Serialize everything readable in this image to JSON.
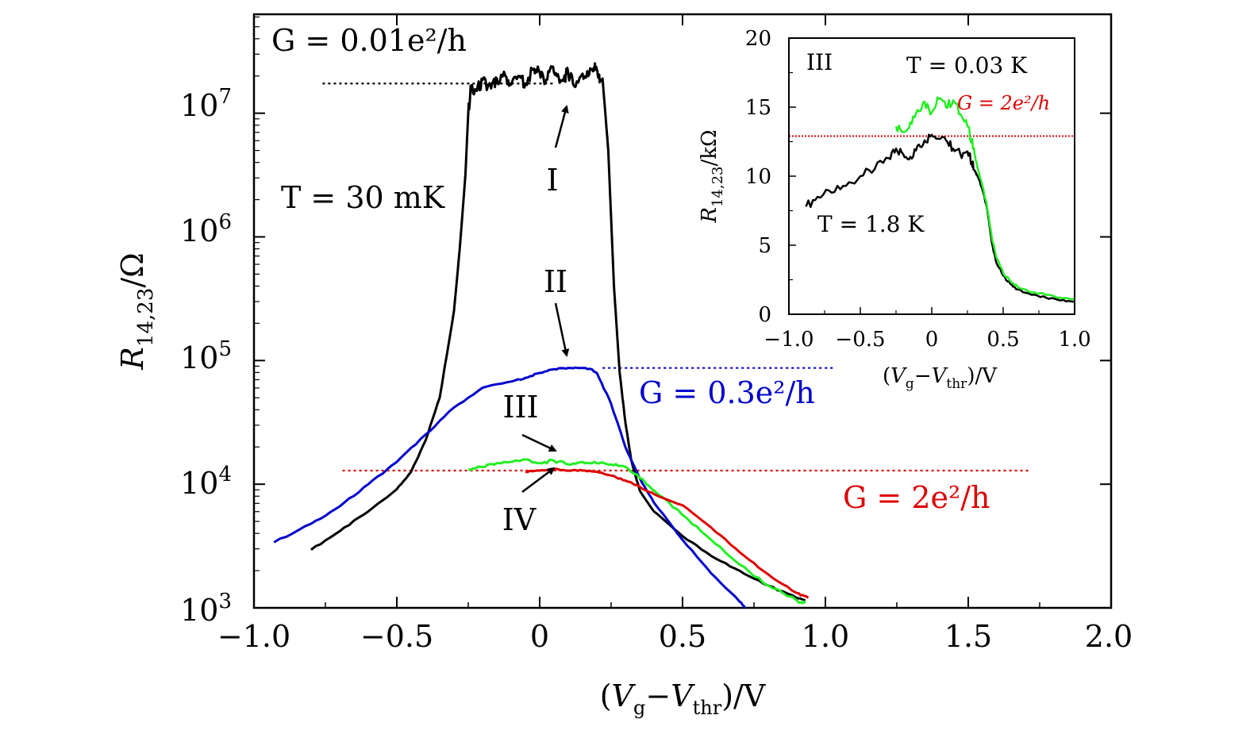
{
  "chart_data": [
    {
      "id": "main",
      "type": "line",
      "title": "",
      "xlabel": "(V_g−V_thr)/V",
      "xlabel_parts": {
        "open": "(",
        "v": "V",
        "g": "g",
        "minus": "−",
        "v2": "V",
        "thr": "thr",
        "close": ")/V"
      },
      "ylabel": "R_14,23/Ω",
      "ylabel_parts": {
        "r": "R",
        "sub": "14,23",
        "rest": "/Ω"
      },
      "xlim": [
        -1.0,
        2.0
      ],
      "ylim_log10": [
        3,
        7.8
      ],
      "yscale": "log",
      "xticks": [
        -1.0,
        -0.5,
        0,
        0.5,
        1.0,
        1.5,
        2.0
      ],
      "xtick_labels": [
        "−1.0",
        "−0.5",
        "0",
        "0.5",
        "1.0",
        "1.5",
        "2.0"
      ],
      "yticks": [
        3,
        4,
        5,
        6,
        7
      ],
      "ytick_labels": [
        "10",
        "10",
        "10",
        "10",
        "10"
      ],
      "ytick_exponents": [
        "3",
        "4",
        "5",
        "6",
        "7"
      ],
      "annotations": {
        "temperature": "T = 30 mK",
        "g001": "G = 0.01e²/h",
        "g03": "G = 0.3e²/h",
        "g2": "G = 2e²/h",
        "labels": [
          "I",
          "II",
          "III",
          "IV"
        ]
      },
      "hlines": [
        {
          "name": "G = 0.01e2/h",
          "color": "#000000",
          "log10_y": 7.24,
          "x_range": [
            -0.76,
            0.05
          ]
        },
        {
          "name": "G = 0.3e2/h",
          "color": "#0000cc",
          "log10_y": 4.94,
          "x_range": [
            0.22,
            1.03
          ]
        },
        {
          "name": "G = 2e2/h",
          "color": "#dd0000",
          "log10_y": 4.11,
          "x_range": [
            -0.69,
            1.72
          ]
        }
      ],
      "series": [
        {
          "name": "I",
          "color": "#000000",
          "x": [
            -0.8,
            -0.7,
            -0.6,
            -0.5,
            -0.45,
            -0.4,
            -0.35,
            -0.3,
            -0.28,
            -0.26,
            -0.25,
            -0.24,
            -0.22,
            -0.2,
            -0.17,
            -0.15,
            -0.12,
            -0.1,
            -0.07,
            -0.05,
            -0.02,
            0.0,
            0.02,
            0.04,
            0.06,
            0.08,
            0.1,
            0.12,
            0.15,
            0.17,
            0.19,
            0.2,
            0.21,
            0.22,
            0.24,
            0.26,
            0.28,
            0.3,
            0.32,
            0.35,
            0.4,
            0.5,
            0.6,
            0.7,
            0.8,
            0.9,
            0.93
          ],
          "log10_y": [
            3.47,
            3.62,
            3.78,
            3.96,
            4.1,
            4.35,
            4.7,
            5.4,
            5.9,
            6.5,
            7.0,
            7.22,
            7.18,
            7.27,
            7.2,
            7.28,
            7.3,
            7.23,
            7.3,
            7.24,
            7.36,
            7.33,
            7.25,
            7.38,
            7.3,
            7.27,
            7.33,
            7.22,
            7.32,
            7.3,
            7.37,
            7.35,
            7.25,
            7.28,
            6.7,
            5.6,
            4.9,
            4.5,
            4.2,
            3.95,
            3.78,
            3.58,
            3.42,
            3.3,
            3.18,
            3.08,
            3.06
          ]
        },
        {
          "name": "II",
          "color": "#0000cc",
          "x": [
            -0.93,
            -0.8,
            -0.7,
            -0.6,
            -0.5,
            -0.4,
            -0.3,
            -0.2,
            -0.1,
            -0.05,
            0.0,
            0.05,
            0.1,
            0.15,
            0.18,
            0.2,
            0.25,
            0.3,
            0.35,
            0.4,
            0.5,
            0.6,
            0.7,
            0.72
          ],
          "log10_y": [
            3.53,
            3.68,
            3.82,
            4.0,
            4.18,
            4.4,
            4.62,
            4.78,
            4.83,
            4.86,
            4.9,
            4.93,
            4.94,
            4.94,
            4.93,
            4.9,
            4.65,
            4.3,
            4.05,
            3.85,
            3.55,
            3.28,
            3.05,
            3.0
          ]
        },
        {
          "name": "III",
          "color": "#22ee22",
          "x": [
            -0.25,
            -0.2,
            -0.15,
            -0.1,
            -0.05,
            0.0,
            0.05,
            0.1,
            0.15,
            0.2,
            0.25,
            0.3,
            0.35,
            0.4,
            0.5,
            0.6,
            0.7,
            0.8,
            0.9,
            0.93
          ],
          "log10_y": [
            4.12,
            4.14,
            4.17,
            4.18,
            4.2,
            4.17,
            4.19,
            4.16,
            4.18,
            4.17,
            4.16,
            4.14,
            4.05,
            3.95,
            3.75,
            3.55,
            3.35,
            3.18,
            3.06,
            3.04
          ]
        },
        {
          "name": "IV",
          "color": "#dd0000",
          "x": [
            -0.05,
            0.0,
            0.05,
            0.1,
            0.15,
            0.2,
            0.25,
            0.3,
            0.35,
            0.4,
            0.5,
            0.6,
            0.7,
            0.8,
            0.9,
            0.94
          ],
          "log10_y": [
            4.1,
            4.11,
            4.12,
            4.11,
            4.11,
            4.1,
            4.07,
            4.03,
            3.98,
            3.92,
            3.83,
            3.65,
            3.45,
            3.27,
            3.12,
            3.08
          ]
        }
      ]
    },
    {
      "id": "inset",
      "type": "line",
      "title": "",
      "xlabel": "(V_g−V_thr)/V",
      "xlabel_parts": {
        "open": "(",
        "v": "V",
        "g": "g",
        "minus": "−",
        "v2": "V",
        "thr": "thr",
        "close": ")/V"
      },
      "ylabel": "R_14,23/kΩ",
      "ylabel_parts": {
        "r": "R",
        "sub": "14,23",
        "rest": "/kΩ"
      },
      "xlim": [
        -1.0,
        1.0
      ],
      "ylim": [
        0,
        20
      ],
      "xticks": [
        -1.0,
        -0.5,
        0,
        0.5,
        1.0
      ],
      "xtick_labels": [
        "−1.0",
        "−0.5",
        "0",
        "0.5",
        "1.0"
      ],
      "yticks": [
        0,
        5,
        10,
        15,
        20
      ],
      "ytick_labels": [
        "0",
        "5",
        "10",
        "15",
        "20"
      ],
      "annotations": {
        "label": "III",
        "t_low": "T = 0.03 K",
        "t_high": "T = 1.8 K",
        "g2": "G = 2e²/h"
      },
      "hlines": [
        {
          "name": "G = 2e2/h",
          "color": "#dd0000",
          "y": 12.9,
          "x_range": [
            -1.0,
            1.0
          ]
        }
      ],
      "series": [
        {
          "name": "T = 1.8 K",
          "color": "#000000",
          "x": [
            -0.88,
            -0.8,
            -0.7,
            -0.6,
            -0.5,
            -0.4,
            -0.3,
            -0.25,
            -0.2,
            -0.15,
            -0.1,
            -0.05,
            0.0,
            0.05,
            0.1,
            0.15,
            0.2,
            0.25,
            0.28,
            0.3,
            0.32,
            0.35,
            0.38,
            0.4,
            0.42,
            0.45,
            0.5,
            0.55,
            0.6,
            0.7,
            0.8,
            0.9,
            1.0
          ],
          "y": [
            7.8,
            8.5,
            8.8,
            9.3,
            10.0,
            10.5,
            11.3,
            12.0,
            11.6,
            11.4,
            12.2,
            12.6,
            13.0,
            12.7,
            12.6,
            12.0,
            11.6,
            11.8,
            11.0,
            10.4,
            10.0,
            9.2,
            8.0,
            6.8,
            5.2,
            3.8,
            2.8,
            2.2,
            1.8,
            1.4,
            1.2,
            1.0,
            0.9
          ]
        },
        {
          "name": "T = 0.03 K",
          "color": "#22ee22",
          "x": [
            -0.25,
            -0.2,
            -0.15,
            -0.1,
            -0.05,
            0.0,
            0.05,
            0.1,
            0.15,
            0.2,
            0.25,
            0.28,
            0.3,
            0.32,
            0.35,
            0.38,
            0.4,
            0.42,
            0.45,
            0.5,
            0.55,
            0.6,
            0.7,
            0.8,
            0.9,
            1.0
          ],
          "y": [
            13.6,
            13.2,
            13.9,
            14.8,
            15.4,
            14.6,
            15.6,
            15.0,
            15.5,
            14.5,
            13.6,
            12.6,
            11.6,
            10.6,
            9.5,
            8.2,
            7.0,
            5.6,
            4.2,
            3.0,
            2.4,
            2.0,
            1.6,
            1.4,
            1.2,
            1.1
          ]
        }
      ]
    }
  ]
}
